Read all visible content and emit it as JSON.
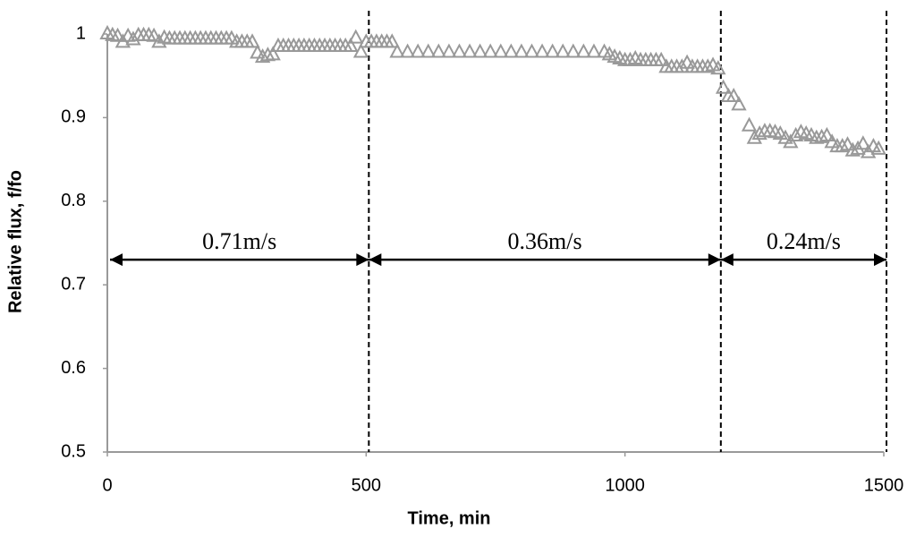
{
  "chart_data": {
    "type": "scatter",
    "xlabel": "Time, min",
    "ylabel": "Relative flux, f/fo",
    "color": "#999999",
    "marker": "triangle-open",
    "x": [
      0,
      10,
      20,
      30,
      40,
      50,
      60,
      70,
      80,
      90,
      100,
      110,
      120,
      130,
      140,
      150,
      160,
      170,
      180,
      190,
      200,
      210,
      220,
      230,
      240,
      250,
      260,
      270,
      280,
      290,
      300,
      310,
      320,
      330,
      340,
      350,
      360,
      370,
      380,
      390,
      400,
      410,
      420,
      430,
      440,
      450,
      460,
      470,
      480,
      490,
      500,
      510,
      520,
      530,
      540,
      550,
      560,
      580,
      600,
      620,
      640,
      660,
      680,
      700,
      720,
      740,
      760,
      780,
      800,
      820,
      840,
      860,
      880,
      900,
      920,
      940,
      960,
      970,
      980,
      990,
      1000,
      1010,
      1020,
      1030,
      1040,
      1050,
      1060,
      1070,
      1080,
      1090,
      1100,
      1110,
      1120,
      1130,
      1140,
      1150,
      1160,
      1170,
      1180,
      1190,
      1200,
      1210,
      1220,
      1240,
      1250,
      1260,
      1270,
      1280,
      1290,
      1300,
      1310,
      1320,
      1330,
      1340,
      1350,
      1360,
      1370,
      1380,
      1390,
      1400,
      1410,
      1420,
      1430,
      1440,
      1450,
      1460,
      1470,
      1480,
      1490
    ],
    "values": [
      1.0,
      0.998,
      0.997,
      0.99,
      0.997,
      0.993,
      0.998,
      0.998,
      0.998,
      0.997,
      0.99,
      0.995,
      0.994,
      0.994,
      0.994,
      0.994,
      0.994,
      0.994,
      0.994,
      0.994,
      0.994,
      0.994,
      0.994,
      0.994,
      0.994,
      0.99,
      0.99,
      0.99,
      0.99,
      0.977,
      0.972,
      0.974,
      0.975,
      0.985,
      0.985,
      0.985,
      0.985,
      0.985,
      0.985,
      0.985,
      0.985,
      0.985,
      0.985,
      0.985,
      0.985,
      0.985,
      0.985,
      0.985,
      0.995,
      0.978,
      0.99,
      0.99,
      0.99,
      0.99,
      0.99,
      0.99,
      0.978,
      0.978,
      0.978,
      0.978,
      0.978,
      0.978,
      0.978,
      0.978,
      0.978,
      0.978,
      0.978,
      0.978,
      0.978,
      0.978,
      0.978,
      0.978,
      0.978,
      0.978,
      0.978,
      0.978,
      0.978,
      0.975,
      0.972,
      0.97,
      0.968,
      0.968,
      0.97,
      0.968,
      0.968,
      0.968,
      0.968,
      0.968,
      0.96,
      0.96,
      0.96,
      0.96,
      0.965,
      0.96,
      0.96,
      0.96,
      0.96,
      0.962,
      0.958,
      0.935,
      0.925,
      0.925,
      0.915,
      0.89,
      0.875,
      0.88,
      0.883,
      0.883,
      0.882,
      0.88,
      0.875,
      0.87,
      0.878,
      0.882,
      0.88,
      0.878,
      0.875,
      0.876,
      0.878,
      0.87,
      0.865,
      0.865,
      0.867,
      0.86,
      0.862,
      0.868,
      0.858,
      0.865,
      0.862
    ],
    "xlim": [
      0,
      1500
    ],
    "xticks": [
      0,
      500,
      1000,
      1500
    ],
    "ylim": [
      0.5,
      1
    ],
    "yticks": [
      0.5,
      0.6,
      0.7,
      0.8,
      0.9,
      1
    ],
    "vlines": [
      500,
      1180,
      1500
    ],
    "annotations": [
      {
        "text": "0.71m/s",
        "x_start": 0,
        "x_end": 500,
        "y": 0.73
      },
      {
        "text": "0.36m/s",
        "x_start": 500,
        "x_end": 1180,
        "y": 0.73
      },
      {
        "text": "0.24m/s",
        "x_start": 1180,
        "x_end": 1500,
        "y": 0.73
      }
    ]
  }
}
